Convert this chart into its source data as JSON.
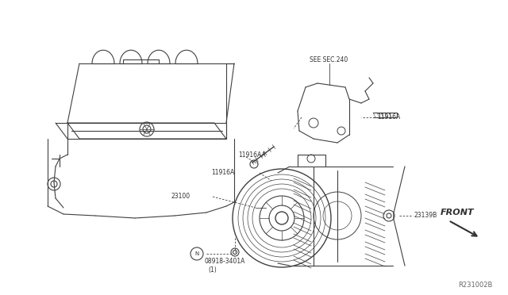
{
  "background_color": "#ffffff",
  "line_color": "#404040",
  "text_color": "#303030",
  "labels": {
    "see_sec": "SEE SEC.240",
    "11916A_left": "11916A",
    "11916A_right": "11916A",
    "11916AA": "11916AA",
    "23100": "23100",
    "23139B": "23139B",
    "bolt_label": "08918-3401A",
    "bolt_label2": "(1)",
    "N_symbol": "N",
    "front": "FRONT",
    "ref_num": "R231002B"
  },
  "fig_width": 6.4,
  "fig_height": 3.72,
  "dpi": 100
}
